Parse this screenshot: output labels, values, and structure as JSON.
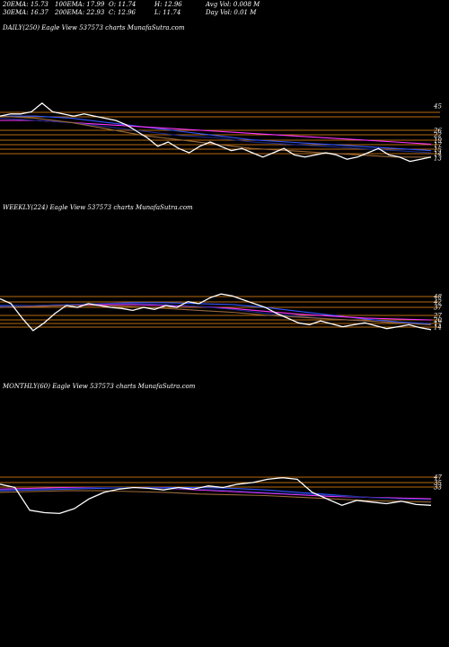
{
  "stats": {
    "ema20": "20EMA: 15.73",
    "ema100": "100EMA: 17.99",
    "open": "O: 11.74",
    "high": "H: 12.96",
    "avg_vol": "Avg Vol: 0.008 M",
    "ema30": "30EMA: 16.37",
    "ema200": "200EMA: 22.93",
    "close": "C: 12.96",
    "low": "L: 11.74",
    "day_vol": "Day Vol: 0.01 M"
  },
  "colors": {
    "background": "#000000",
    "price": "#ffffff",
    "ema_blue": "#3355ff",
    "ema_magenta": "#ff33ff",
    "ema_navy": "#1a2a88",
    "ema_brown": "#9a6a3a",
    "level": "#b86a10"
  },
  "chart_data": [
    {
      "type": "line",
      "title": "DAILY(250) Eagle  View  537573 charts MunafaSutra.com",
      "y_tick_labels": [
        "45",
        "26",
        "22",
        "19",
        "17",
        "15",
        "14",
        "13"
      ],
      "series": [
        {
          "color": "price",
          "y": [
            32,
            33,
            33,
            34,
            38,
            34,
            33,
            32,
            33,
            32,
            31,
            30,
            28,
            25,
            22,
            18,
            20,
            17,
            15,
            18,
            20,
            18,
            16,
            17,
            15,
            13,
            15,
            17,
            14,
            13,
            14,
            15,
            14,
            12,
            13,
            15,
            17,
            14,
            13,
            11,
            12,
            13
          ]
        },
        {
          "color": "ema_blue",
          "y": [
            32,
            32,
            31,
            29,
            27,
            25,
            23,
            21,
            20,
            19,
            18,
            17,
            16
          ]
        },
        {
          "color": "ema_magenta",
          "y": [
            30,
            30,
            29,
            28,
            27,
            26,
            25,
            24,
            23,
            22,
            21,
            20,
            19
          ]
        },
        {
          "color": "ema_navy",
          "y": [
            31,
            30,
            29,
            27,
            25,
            23,
            22,
            20,
            19,
            18,
            17,
            16,
            15
          ]
        },
        {
          "color": "ema_brown",
          "y": [
            32,
            31,
            29,
            26,
            23,
            21,
            19,
            17,
            16,
            15,
            14,
            13,
            13
          ]
        }
      ]
    },
    {
      "type": "line",
      "title": "WEEKLY(224) Eagle  View  537573 charts MunafaSutra.com",
      "y_tick_labels": [
        "48",
        "42",
        "37",
        "27",
        "20",
        "17",
        "14"
      ],
      "series": [
        {
          "color": "price",
          "y": [
            45,
            40,
            25,
            12,
            20,
            30,
            38,
            36,
            40,
            38,
            36,
            35,
            33,
            36,
            34,
            38,
            36,
            42,
            40,
            46,
            50,
            48,
            44,
            40,
            36,
            30,
            25,
            20,
            18,
            22,
            19,
            16,
            18,
            20,
            17,
            14,
            16,
            18,
            15,
            13
          ]
        },
        {
          "color": "ema_blue",
          "y": [
            38,
            38,
            39,
            40,
            41,
            41,
            40,
            39,
            36,
            32,
            28,
            24,
            21,
            19
          ]
        },
        {
          "color": "ema_magenta",
          "y": [
            36,
            37,
            38,
            39,
            39,
            38,
            37,
            35,
            32,
            29,
            27,
            25,
            24,
            23
          ]
        },
        {
          "color": "ema_navy",
          "y": [
            37,
            38,
            39,
            40,
            40,
            39,
            37,
            34,
            30,
            27,
            24,
            22,
            20,
            18
          ]
        },
        {
          "color": "ema_brown",
          "y": [
            36,
            37,
            38,
            38,
            37,
            35,
            33,
            31,
            28,
            26,
            24,
            22,
            20,
            18
          ]
        }
      ]
    },
    {
      "type": "line",
      "title": "MONTHLY(60) Eagle  View  537573 charts MunafaSutra.com",
      "y_tick_labels": [
        "47",
        "35",
        "33"
      ],
      "series": [
        {
          "color": "price",
          "y": [
            40,
            36,
            8,
            5,
            4,
            10,
            22,
            30,
            34,
            36,
            35,
            33,
            36,
            34,
            38,
            36,
            40,
            42,
            46,
            48,
            46,
            30,
            22,
            14,
            20,
            18,
            16,
            19,
            15,
            14
          ]
        },
        {
          "color": "ema_blue",
          "y": [
            32,
            33,
            34,
            35,
            36,
            36,
            36,
            35,
            33,
            30,
            27,
            24,
            22,
            21
          ]
        },
        {
          "color": "ema_magenta",
          "y": [
            34,
            35,
            36,
            36,
            36,
            35,
            33,
            31,
            29,
            27,
            25,
            24,
            23,
            22
          ]
        },
        {
          "color": "ema_navy",
          "y": [
            33,
            34,
            35,
            36,
            36,
            35,
            34,
            32,
            30,
            28,
            26,
            24,
            22,
            21
          ]
        },
        {
          "color": "ema_brown",
          "y": [
            30,
            31,
            32,
            32,
            31,
            30,
            28,
            27,
            26,
            24,
            22,
            20,
            19,
            18
          ]
        }
      ]
    }
  ]
}
